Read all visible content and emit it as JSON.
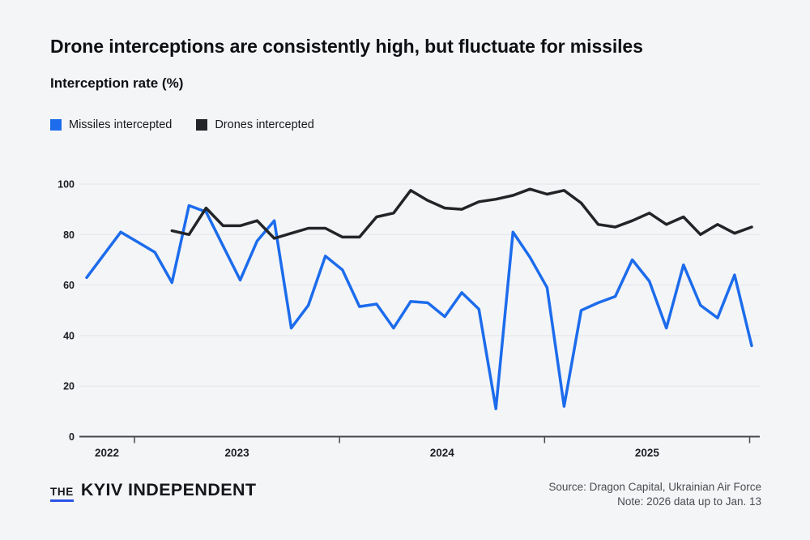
{
  "header": {
    "title": "Drone interceptions are consistently high, but fluctuate for missiles",
    "subtitle": "Interception rate (%)"
  },
  "legend": [
    {
      "label": "Missiles intercepted",
      "color": "#1c6cec"
    },
    {
      "label": "Drones intercepted",
      "color": "#222428"
    }
  ],
  "chart_data": {
    "type": "line",
    "title": "Drone interceptions are consistently high, but fluctuate for missiles",
    "subtitle": "Interception rate (%)",
    "ylabel": "Interception rate (%)",
    "ylim": [
      0,
      100
    ],
    "y_ticks": [
      0,
      20,
      40,
      60,
      80,
      100
    ],
    "grid": "horizontal",
    "legend_position": "top-left",
    "x": [
      "Oct 2022",
      "Nov 2022",
      "Dec 2022",
      "Jan 2023",
      "Feb 2023",
      "Mar 2023",
      "Apr 2023",
      "May 2023",
      "Jun 2023",
      "Jul 2023",
      "Aug 2023",
      "Sep 2023",
      "Oct 2023",
      "Nov 2023",
      "Dec 2023",
      "Jan 2024",
      "Feb 2024",
      "Mar 2024",
      "Apr 2024",
      "May 2024",
      "Jun 2024",
      "Jul 2024",
      "Aug 2024",
      "Sep 2024",
      "Oct 2024",
      "Nov 2024",
      "Dec 2024",
      "Jan 2025",
      "Feb 2025",
      "Mar 2025",
      "Apr 2025",
      "May 2025",
      "Jun 2025",
      "Jul 2025",
      "Aug 2025",
      "Sep 2025",
      "Oct 2025",
      "Nov 2025",
      "Dec 2025",
      "Jan 2026"
    ],
    "x_year_labels": [
      "2022",
      "2023",
      "2024",
      "2025"
    ],
    "year_tick_indices": [
      3,
      15,
      27,
      39
    ],
    "series": [
      {
        "name": "Missiles intercepted",
        "color": "#1c6cec",
        "values": [
          63,
          72,
          81,
          77,
          73,
          61,
          91.5,
          89,
          75.5,
          62,
          77.5,
          85.5,
          43,
          52,
          71.5,
          66,
          51.5,
          52.5,
          43,
          53.5,
          53,
          47.5,
          57,
          50.5,
          11,
          81,
          71,
          59,
          12,
          50,
          53,
          55.5,
          70,
          61.5,
          43,
          68,
          52,
          47,
          64,
          36
        ]
      },
      {
        "name": "Drones intercepted",
        "color": "#222428",
        "values": [
          null,
          null,
          null,
          null,
          null,
          81.5,
          80,
          90.5,
          83.5,
          83.5,
          85.5,
          78.5,
          80.5,
          82.5,
          82.5,
          79,
          79,
          87,
          88.5,
          97.5,
          93.5,
          90.5,
          90,
          93,
          94,
          95.5,
          98,
          96,
          97.5,
          92.5,
          84,
          83,
          85.5,
          88.5,
          84,
          87,
          80,
          84,
          80.5,
          83
        ]
      }
    ]
  },
  "footer": {
    "logo_the": "THE",
    "logo_name": "KYIV INDEPENDENT",
    "source": "Source: Dragon Capital, Ukrainian Air Force",
    "note": "Note: 2026 data up to Jan. 13"
  }
}
